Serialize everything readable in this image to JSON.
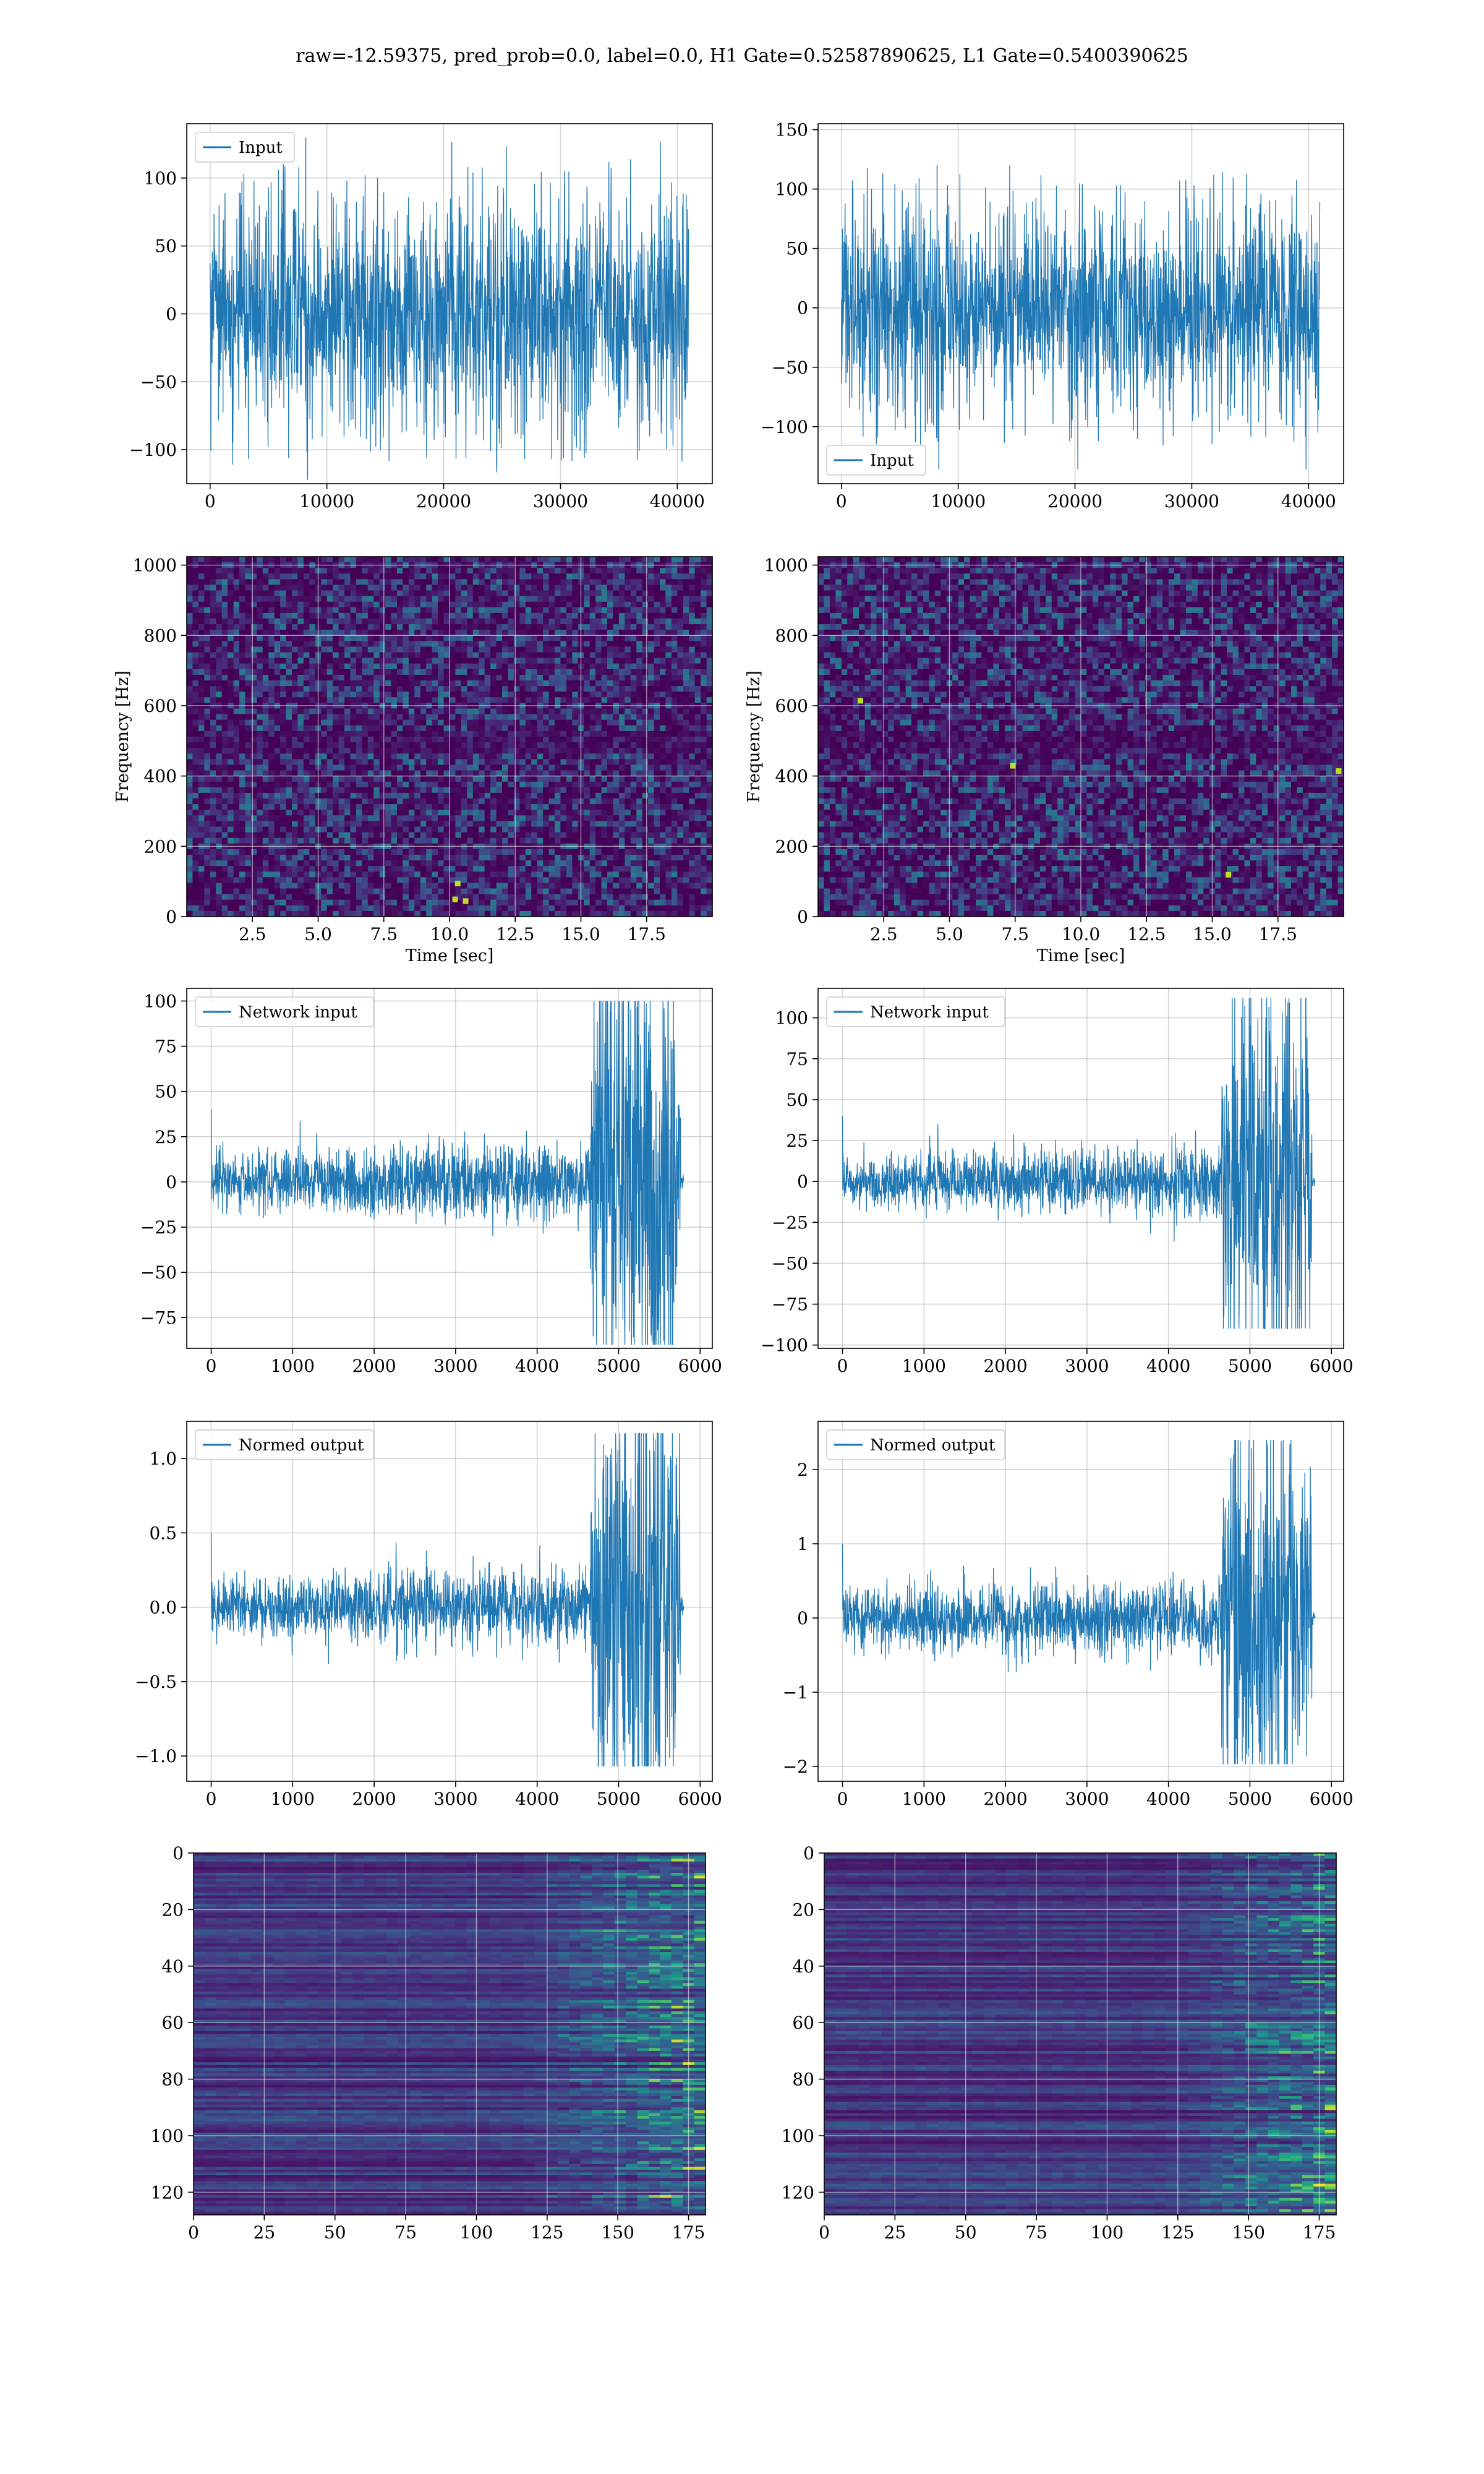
{
  "figure": {
    "title": "raw=-12.59375, pred_prob=0.0, label=0.0, H1 Gate=0.52587890625, L1 Gate=0.5400390625"
  },
  "colors": {
    "line": "#1f77b4",
    "grid": "#b0b0b0",
    "viridis": [
      "#440154",
      "#482475",
      "#414487",
      "#355f8d",
      "#2a788e",
      "#21918c",
      "#22a884",
      "#44bf70",
      "#7ad151",
      "#bddf26",
      "#fde725"
    ]
  },
  "chart_data": [
    {
      "id": "input_h1",
      "type": "line",
      "legend": "Input",
      "legend_loc": "upper-left",
      "xlim": [
        -2000,
        43000
      ],
      "ylim": [
        -125,
        140
      ],
      "xticks": [
        0,
        10000,
        20000,
        30000,
        40000
      ],
      "yticks": [
        -100,
        -50,
        0,
        50,
        100
      ],
      "signal": {
        "x_end": 40960,
        "core_amp": 70,
        "peak_max": 130,
        "peak_min": -122
      }
    },
    {
      "id": "input_l1",
      "type": "line",
      "legend": "Input",
      "legend_loc": "lower-left",
      "xlim": [
        -2000,
        43000
      ],
      "ylim": [
        -148,
        155
      ],
      "xticks": [
        0,
        10000,
        20000,
        30000,
        40000
      ],
      "yticks": [
        -100,
        -50,
        0,
        50,
        100,
        150
      ],
      "signal": {
        "x_end": 40960,
        "core_amp": 72,
        "peak_max": 120,
        "peak_min": -136
      }
    },
    {
      "id": "spectrogram_h1",
      "type": "heatmap",
      "colormap": "viridis",
      "xlabel": "Time [sec]",
      "ylabel": "Frequency [Hz]",
      "xlim": [
        0,
        20
      ],
      "ylim": [
        0,
        1024
      ],
      "xticks": [
        2.5,
        5.0,
        7.5,
        10.0,
        12.5,
        15.0,
        17.5
      ],
      "yticks": [
        0,
        200,
        400,
        600,
        800,
        1000
      ],
      "dark_band_hz": 500,
      "hotspots": [
        {
          "t": 10.2,
          "f": 50
        },
        {
          "t": 10.3,
          "f": 95
        },
        {
          "t": 10.6,
          "f": 45
        }
      ]
    },
    {
      "id": "spectrogram_l1",
      "type": "heatmap",
      "colormap": "viridis",
      "xlabel": "Time [sec]",
      "ylabel": "Frequency [Hz]",
      "xlim": [
        0,
        20
      ],
      "ylim": [
        0,
        1024
      ],
      "xticks": [
        2.5,
        5.0,
        7.5,
        10.0,
        12.5,
        15.0,
        17.5
      ],
      "yticks": [
        0,
        200,
        400,
        600,
        800,
        1000
      ],
      "dark_band_hz": 500,
      "hotspots": [
        {
          "t": 7.4,
          "f": 430
        },
        {
          "t": 19.8,
          "f": 415
        },
        {
          "t": 15.6,
          "f": 120
        },
        {
          "t": 1.6,
          "f": 615
        }
      ]
    },
    {
      "id": "network_input_h1",
      "type": "line",
      "legend": "Network input",
      "legend_loc": "upper-left",
      "xlim": [
        -300,
        6150
      ],
      "ylim": [
        -92,
        107
      ],
      "xticks": [
        0,
        1000,
        2000,
        3000,
        4000,
        5000,
        6000
      ],
      "yticks": [
        -75,
        -50,
        -25,
        0,
        25,
        50,
        75,
        100
      ],
      "signal": {
        "x_end": 5800,
        "burst_start": 4650,
        "burst_end": 5760,
        "base_amp": 8,
        "burst_amp": 70,
        "peak_max": 100,
        "peak_min": -90
      }
    },
    {
      "id": "network_input_l1",
      "type": "line",
      "legend": "Network input",
      "legend_loc": "upper-left",
      "xlim": [
        -300,
        6150
      ],
      "ylim": [
        -102,
        118
      ],
      "xticks": [
        0,
        1000,
        2000,
        3000,
        4000,
        5000,
        6000
      ],
      "yticks": [
        -100,
        -75,
        -50,
        -25,
        0,
        25,
        50,
        75,
        100
      ],
      "signal": {
        "x_end": 5800,
        "burst_start": 4650,
        "burst_end": 5760,
        "base_amp": 8,
        "burst_amp": 65,
        "peak_max": 112,
        "peak_min": -90
      }
    },
    {
      "id": "normed_output_h1",
      "type": "line",
      "legend": "Normed output",
      "legend_loc": "upper-left",
      "xlim": [
        -300,
        6150
      ],
      "ylim": [
        -1.17,
        1.25
      ],
      "xticks": [
        0,
        1000,
        2000,
        3000,
        4000,
        5000,
        6000
      ],
      "yticks": [
        -1.0,
        -0.5,
        0.0,
        0.5,
        1.0
      ],
      "signal": {
        "x_end": 5800,
        "burst_start": 4650,
        "burst_end": 5760,
        "base_amp": 0.1,
        "burst_amp": 0.85,
        "peak_max": 1.17,
        "peak_min": -1.07
      }
    },
    {
      "id": "normed_output_l1",
      "type": "line",
      "legend": "Normed output",
      "legend_loc": "upper-left",
      "xlim": [
        -300,
        6150
      ],
      "ylim": [
        -2.2,
        2.65
      ],
      "xticks": [
        0,
        1000,
        2000,
        3000,
        4000,
        5000,
        6000
      ],
      "yticks": [
        -2,
        -1,
        0,
        1,
        2
      ],
      "signal": {
        "x_end": 5800,
        "burst_start": 4650,
        "burst_end": 5760,
        "base_amp": 0.2,
        "burst_amp": 1.5,
        "peak_max": 2.4,
        "peak_min": -1.97
      }
    },
    {
      "id": "feature_map_h1",
      "type": "heatmap",
      "colormap": "viridis",
      "xlim": [
        0,
        181
      ],
      "ylim": [
        128,
        0
      ],
      "xticks": [
        0,
        25,
        50,
        75,
        100,
        125,
        150,
        175
      ],
      "yticks": [
        0,
        20,
        40,
        60,
        80,
        100,
        120
      ],
      "activity_start": 115
    },
    {
      "id": "feature_map_l1",
      "type": "heatmap",
      "colormap": "viridis",
      "xlim": [
        0,
        181
      ],
      "ylim": [
        128,
        0
      ],
      "xticks": [
        0,
        25,
        50,
        75,
        100,
        125,
        150,
        175
      ],
      "yticks": [
        0,
        20,
        40,
        60,
        80,
        100,
        120
      ],
      "activity_start": 120
    }
  ]
}
